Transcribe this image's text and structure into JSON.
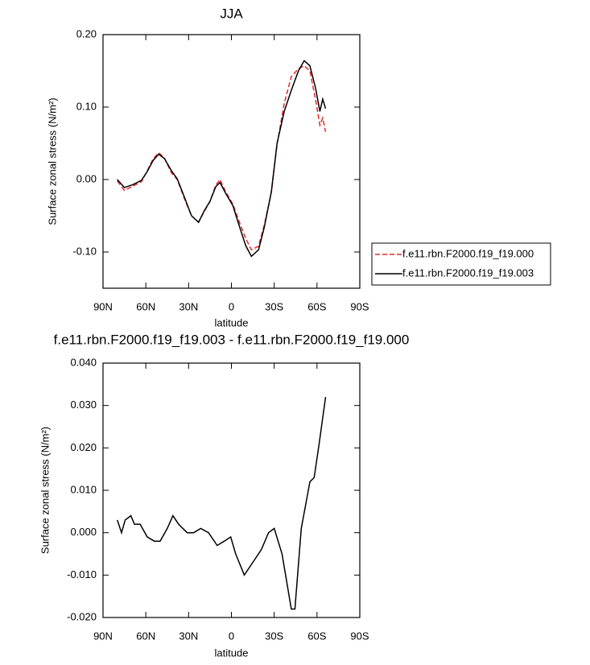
{
  "chart_data": [
    {
      "type": "line",
      "title": "JJA",
      "x_label": "latitude",
      "y_label": "Surface zonal stress (N/m²)",
      "x": [
        80,
        75,
        69,
        63,
        59,
        55,
        51,
        47,
        42,
        38,
        33,
        28,
        23,
        19,
        15,
        11,
        8,
        4,
        -1,
        -6,
        -10,
        -14,
        -19,
        -23,
        -28,
        -32,
        -37,
        -42,
        -47,
        -51,
        -55,
        -59,
        -62,
        -64,
        -66
      ],
      "series": [
        {
          "name": "f.e11.rbn.F2000.f19_f19.000",
          "color": "#e8262a",
          "line_style": "dashed",
          "values": [
            -0.002,
            -0.015,
            -0.009,
            -0.003,
            0.012,
            0.028,
            0.037,
            0.03,
            0.009,
            0.0,
            -0.026,
            -0.05,
            -0.059,
            -0.044,
            -0.03,
            -0.008,
            0.0,
            -0.017,
            -0.034,
            -0.061,
            -0.081,
            -0.097,
            -0.092,
            -0.063,
            -0.018,
            0.048,
            0.105,
            0.142,
            0.153,
            0.157,
            0.15,
            0.11,
            0.075,
            0.085,
            0.066
          ]
        },
        {
          "name": "f.e11.rbn.F2000.f19_f19.003",
          "color": "#000000",
          "line_style": "solid",
          "values": [
            0.0,
            -0.011,
            -0.007,
            -0.001,
            0.011,
            0.026,
            0.035,
            0.029,
            0.012,
            0.001,
            -0.024,
            -0.05,
            -0.059,
            -0.043,
            -0.03,
            -0.01,
            -0.004,
            -0.019,
            -0.036,
            -0.067,
            -0.091,
            -0.106,
            -0.097,
            -0.066,
            -0.017,
            0.05,
            0.094,
            0.123,
            0.15,
            0.164,
            0.157,
            0.126,
            0.094,
            0.111,
            0.098
          ]
        }
      ],
      "xlim": [
        90,
        -90
      ],
      "xticks": [
        {
          "value": 90,
          "label": "90N"
        },
        {
          "value": 60,
          "label": "60N"
        },
        {
          "value": 30,
          "label": "30N"
        },
        0,
        {
          "value": -30,
          "label": "30S"
        },
        {
          "value": -60,
          "label": "60S"
        },
        {
          "value": -90,
          "label": "90S"
        }
      ],
      "ylim": [
        -0.15,
        0.2
      ],
      "yticks": [
        {
          "value": -0.1,
          "label": "-0.10"
        },
        {
          "value": 0.0,
          "label": "0.00"
        },
        {
          "value": 0.1,
          "label": "0.10"
        },
        {
          "value": 0.2,
          "label": "0.20"
        }
      ],
      "legend": "right",
      "grid": false
    },
    {
      "type": "line",
      "title": "f.e11.rbn.F2000.f19_f19.003 - f.e11.rbn.F2000.f19_f19.000",
      "x_label": "latitude",
      "y_label": "Surface zonal stress (N/m²)",
      "x": [
        80,
        77,
        74.5,
        70.5,
        68,
        64,
        59,
        54,
        50,
        45,
        41,
        37,
        31,
        26.5,
        21.5,
        16,
        10,
        5,
        0.5,
        -3,
        -9,
        -15,
        -21,
        -26,
        -30,
        -35.5,
        -42,
        -44.5,
        -49,
        -55,
        -58,
        -61.5,
        -66
      ],
      "values": [
        0.003,
        0.0,
        0.003,
        0.004,
        0.002,
        0.002,
        -0.001,
        -0.002,
        -0.002,
        0.001,
        0.004,
        0.002,
        0.0,
        0.0,
        0.001,
        0.0,
        -0.003,
        -0.002,
        -0.001,
        -0.005,
        -0.01,
        -0.007,
        -0.004,
        0.0,
        0.001,
        -0.005,
        -0.018,
        -0.018,
        0.001,
        0.012,
        0.013,
        0.021,
        0.032
      ],
      "color": "#000000",
      "xlim": [
        90,
        -90
      ],
      "xticks": [
        {
          "value": 90,
          "label": "90N"
        },
        {
          "value": 60,
          "label": "60N"
        },
        {
          "value": 30,
          "label": "30N"
        },
        0,
        {
          "value": -30,
          "label": "30S"
        },
        {
          "value": -60,
          "label": "60S"
        },
        {
          "value": -90,
          "label": "90S"
        }
      ],
      "ylim": [
        -0.02,
        0.04
      ],
      "yticks": [
        {
          "value": -0.02,
          "label": "-0.020"
        },
        {
          "value": -0.01,
          "label": "-0.010"
        },
        {
          "value": 0.0,
          "label": "0.000"
        },
        {
          "value": 0.01,
          "label": "0.010"
        },
        {
          "value": 0.02,
          "label": "0.020"
        },
        {
          "value": 0.03,
          "label": "0.030"
        },
        {
          "value": 0.04,
          "label": "0.040"
        }
      ],
      "grid": false
    }
  ]
}
